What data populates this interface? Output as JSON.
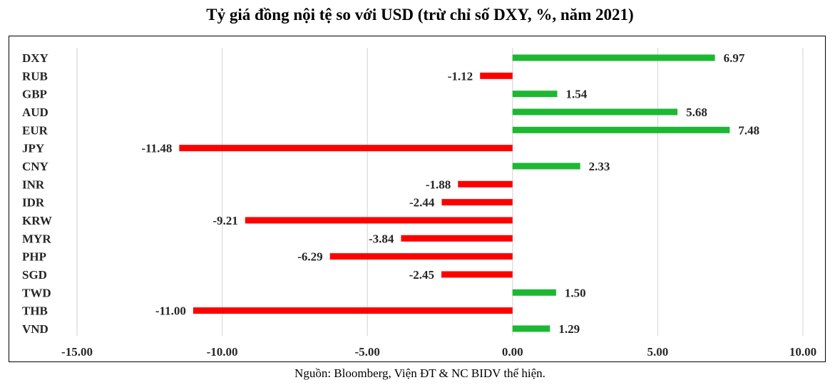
{
  "chart_data": {
    "type": "bar",
    "orientation": "horizontal",
    "title": "Tỷ giá đồng nội tệ so với USD (trừ chỉ số DXY, %, năm 2021)",
    "source": "Nguồn: Bloomberg, Viện ĐT & NC BIDV thể hiện.",
    "categories": [
      "DXY",
      "RUB",
      "GBP",
      "AUD",
      "EUR",
      "JPY",
      "CNY",
      "INR",
      "IDR",
      "KRW",
      "MYR",
      "PHP",
      "SGD",
      "TWD",
      "THB",
      "VND"
    ],
    "values": [
      6.97,
      -1.12,
      1.54,
      5.68,
      7.48,
      -11.48,
      2.33,
      -1.88,
      -2.44,
      -9.21,
      -3.84,
      -6.29,
      -2.45,
      1.5,
      -11.0,
      1.29
    ],
    "value_labels": [
      "6.97",
      "-1.12",
      "1.54",
      "5.68",
      "7.48",
      "-11.48",
      "2.33",
      "-1.88",
      "-2.44",
      "-9.21",
      "-3.84",
      "-6.29",
      "-2.45",
      "1.50",
      "-11.00",
      "1.29"
    ],
    "xlim": [
      -15,
      10
    ],
    "xticks": [
      -15,
      -10,
      -5,
      0,
      5,
      10
    ],
    "xtick_labels": [
      "-15.00",
      "-10.00",
      "-5.00",
      "0.00",
      "5.00",
      "10.00"
    ],
    "grid": true,
    "legend": "none",
    "colors": {
      "positive": "#1db832",
      "negative": "#ff0000",
      "grid": "#d9d9d9"
    }
  }
}
